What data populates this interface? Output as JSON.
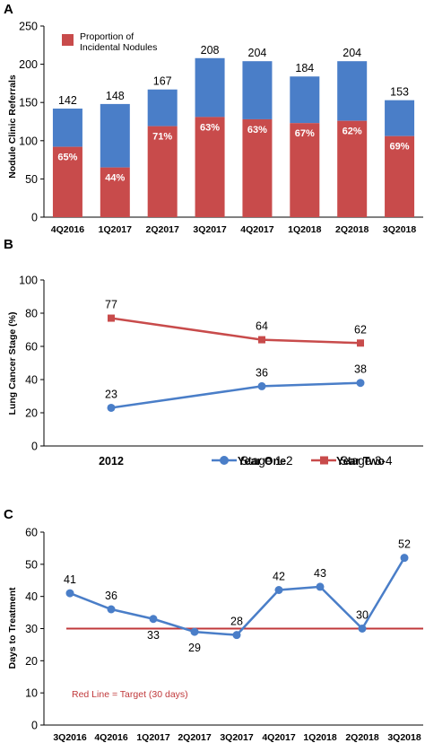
{
  "colors": {
    "red": "#c84b4b",
    "blue": "#4a7ec8",
    "target": "#c0393b",
    "axis": "#000000"
  },
  "chart_data": [
    {
      "panel": "A",
      "type": "bar",
      "ylabel": "Nodule Clinic Referrals",
      "ylim": [
        0,
        250
      ],
      "yticks": [
        0,
        50,
        100,
        150,
        200,
        250
      ],
      "categories": [
        "4Q2016",
        "1Q2017",
        "2Q2017",
        "3Q2017",
        "4Q2017",
        "1Q2018",
        "2Q2018",
        "3Q2018"
      ],
      "totals": [
        142,
        148,
        167,
        208,
        204,
        184,
        204,
        153
      ],
      "percent_labels": [
        "65%",
        "44%",
        "71%",
        "63%",
        "63%",
        "67%",
        "62%",
        "69%"
      ],
      "incidental_values": [
        92,
        65,
        119,
        131,
        128,
        123,
        126,
        106
      ],
      "legend": {
        "label_line1": "Proportion of",
        "label_line2": "Incidental Nodules",
        "placement": "top-left"
      }
    },
    {
      "panel": "B",
      "type": "line",
      "ylabel": "Lung Cancer Stage (%)",
      "ylim": [
        0,
        100
      ],
      "yticks": [
        0,
        20,
        40,
        60,
        80,
        100
      ],
      "x": [
        "2012",
        "Year One",
        "Year Two"
      ],
      "series": [
        {
          "name": "Stage 1-2",
          "values": [
            23,
            36,
            38
          ],
          "labels": [
            "23",
            "36",
            "38"
          ],
          "marker": "circle"
        },
        {
          "name": "Stage 3-4",
          "values": [
            77,
            64,
            62
          ],
          "labels": [
            "77",
            "64",
            "62"
          ],
          "marker": "square"
        }
      ],
      "legend_placement": "bottom-right"
    },
    {
      "panel": "C",
      "type": "line",
      "ylabel": "Days to Treatment",
      "ylim": [
        0,
        60
      ],
      "yticks": [
        0,
        10,
        20,
        30,
        40,
        50,
        60
      ],
      "x": [
        "3Q2016",
        "4Q2016",
        "1Q2017",
        "2Q2017",
        "3Q2017",
        "4Q2017",
        "1Q2018",
        "2Q2018",
        "3Q2018"
      ],
      "values": [
        41,
        36,
        33,
        29,
        28,
        42,
        43,
        30,
        52
      ],
      "labels": [
        "41",
        "36",
        "33",
        "29",
        "28",
        "42",
        "43",
        "30",
        "52"
      ],
      "target": 30,
      "target_note": "Red Line = Target (30 days)"
    }
  ]
}
